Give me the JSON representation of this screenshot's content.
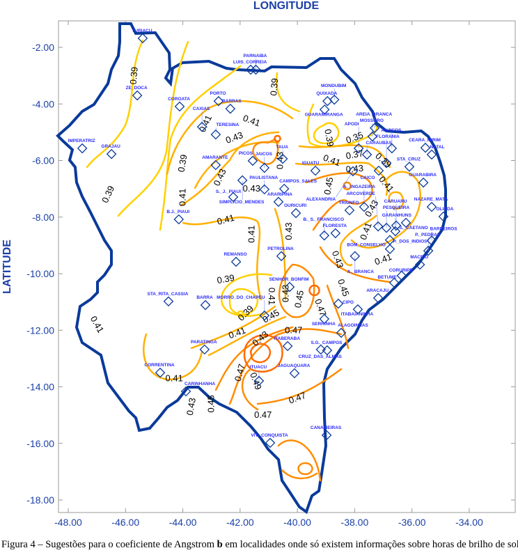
{
  "axes": {
    "xlabel": "LONGITUDE",
    "ylabel": "LATITUDE",
    "x_ticks": [
      "-48.00",
      "-46.00",
      "-44.00",
      "-42.00",
      "-40.00",
      "-38.00",
      "-36.00",
      "-34.00"
    ],
    "x_values": [
      -48,
      -46,
      -44,
      -42,
      -40,
      -38,
      -36,
      -34
    ],
    "y_ticks": [
      "-2.00",
      "-4.00",
      "-6.00",
      "-8.00",
      "-10.00",
      "-12.00",
      "-14.00",
      "-16.00",
      "-18.00"
    ],
    "y_values": [
      -2,
      -4,
      -6,
      -8,
      -10,
      -12,
      -14,
      -16,
      -18
    ],
    "xlim": [
      -48.35,
      -32.4
    ],
    "ylim": [
      -18.4,
      -1.1
    ]
  },
  "colors": {
    "axis": "#1a3fa6",
    "boundary": "#0a3a9a",
    "station": "#0a3a9a",
    "low": "#ffd000",
    "mid": "#ffb000",
    "high": "#ff8c00",
    "higher": "#ff6a00"
  },
  "stations": [
    {
      "name": "TURIACU",
      "lon": -45.4,
      "lat": -1.68
    },
    {
      "name": "ZE_DOCA",
      "lon": -45.59,
      "lat": -3.7
    },
    {
      "name": "IMPERATRIZ",
      "lon": -47.51,
      "lat": -5.57
    },
    {
      "name": "GRAJAU",
      "lon": -46.49,
      "lat": -5.77
    },
    {
      "name": "COROATA",
      "lon": -44.11,
      "lat": -4.09
    },
    {
      "name": "PORTO",
      "lon": -42.75,
      "lat": -3.9
    },
    {
      "name": "BARRAS",
      "lon": -42.34,
      "lat": -4.17
    },
    {
      "name": "CAXIAS",
      "lon": -43.33,
      "lat": -4.81
    },
    {
      "name": "TERESINA",
      "lon": -42.85,
      "lat": -5.08
    },
    {
      "name": "AMARANTE",
      "lon": -42.85,
      "lat": -6.16
    },
    {
      "name": "LUIS_CORREIA",
      "lon": -41.63,
      "lat": -2.79
    },
    {
      "name": "PARNAIBA",
      "lon": -41.45,
      "lat": -2.79
    },
    {
      "name": "PICOS",
      "lon": -41.56,
      "lat": -6.01
    },
    {
      "name": "JAICOS",
      "lon": -41.15,
      "lat": -6.26
    },
    {
      "name": "SIMPLICIO_MENDES",
      "lon": -41.92,
      "lat": -6.7
    },
    {
      "name": "S._J._PIAUI",
      "lon": -42.24,
      "lat": -7.29
    },
    {
      "name": "PAULISTANA",
      "lon": -41.15,
      "lat": -7.02
    },
    {
      "name": "CAMPOS_SALES",
      "lon": -40.46,
      "lat": -7.0
    },
    {
      "name": "ARARIPINA",
      "lon": -40.66,
      "lat": -7.46
    },
    {
      "name": "TAUA",
      "lon": -40.51,
      "lat": -5.94
    },
    {
      "name": "B.J._PIAUI",
      "lon": -44.14,
      "lat": -8.08
    },
    {
      "name": "OURICURI",
      "lon": -40.05,
      "lat": -7.86
    },
    {
      "name": "IGUATU",
      "lon": -39.37,
      "lat": -6.36
    },
    {
      "name": "ALEXANDRIA",
      "lon": -38.06,
      "lat": -6.38
    },
    {
      "name": "QUIXADA",
      "lon": -38.95,
      "lat": -3.9
    },
    {
      "name": "GUARAMIRANGA",
      "lon": -39.05,
      "lat": -4.2
    },
    {
      "name": "MONDUBIM",
      "lon": -38.71,
      "lat": -3.85
    },
    {
      "name": "AREIA_BRANCA",
      "lon": -37.3,
      "lat": -4.85
    },
    {
      "name": "MOSSORO",
      "lon": -37.38,
      "lat": -5.15
    },
    {
      "name": "APODI",
      "lon": -37.86,
      "lat": -5.57
    },
    {
      "name": "CARAUBAS",
      "lon": -37.57,
      "lat": -5.79
    },
    {
      "name": "ANJICOS",
      "lon": -36.7,
      "lat": -5.57
    },
    {
      "name": "CEARA_MIRIM",
      "lon": -35.53,
      "lat": -5.55
    },
    {
      "name": "NATAL",
      "lon": -35.31,
      "lat": -5.79
    },
    {
      "name": "FLORANIA",
      "lon": -36.89,
      "lat": -6.09
    },
    {
      "name": "CAICO",
      "lon": -37.16,
      "lat": -6.36
    },
    {
      "name": "STA_CRUZ",
      "lon": -36.09,
      "lat": -6.22
    },
    {
      "name": "GUARABIRA",
      "lon": -35.6,
      "lat": -6.78
    },
    {
      "name": "NAZARE_MATA",
      "lon": -35.31,
      "lat": -7.64
    },
    {
      "name": "OLINDA",
      "lon": -34.9,
      "lat": -7.98
    },
    {
      "name": "TRIUNFO",
      "lon": -38.18,
      "lat": -7.76
    },
    {
      "name": "A._INGAZEIRA",
      "lon": -37.67,
      "lat": -7.64
    },
    {
      "name": "ARCOVERDE",
      "lon": -37.18,
      "lat": -8.33
    },
    {
      "name": "PESQUEIRA",
      "lon": -36.89,
      "lat": -8.38
    },
    {
      "name": "CARUARU",
      "lon": -36.55,
      "lat": -8.3
    },
    {
      "name": "S._CAETANO",
      "lon": -36.21,
      "lat": -8.2
    },
    {
      "name": "GARANHUNS",
      "lon": -36.58,
      "lat": -8.5
    },
    {
      "name": "BOM_CONSELHO",
      "lon": -36.77,
      "lat": -8.81
    },
    {
      "name": "P._DOS_INDIOS",
      "lon": -36.77,
      "lat": -9.13
    },
    {
      "name": "BARREIROS",
      "lon": -35.31,
      "lat": -8.83
    },
    {
      "name": "P._PEDRAS",
      "lon": -35.43,
      "lat": -9.19
    },
    {
      "name": "MACEIO",
      "lon": -35.72,
      "lat": -9.68
    },
    {
      "name": "CORURIPE",
      "lon": -36.36,
      "lat": -10.07
    },
    {
      "name": "BETUME",
      "lon": -36.62,
      "lat": -10.32
    },
    {
      "name": "ARACAJU",
      "lon": -37.18,
      "lat": -10.86
    },
    {
      "name": "A._BRANCA",
      "lon": -37.99,
      "lat": -9.38
    },
    {
      "name": "FLORESTA",
      "lon": -38.67,
      "lat": -8.57
    },
    {
      "name": "B._S._FRANCISCO",
      "lon": -39.06,
      "lat": -8.65
    },
    {
      "name": "PETROLINA",
      "lon": -40.56,
      "lat": -9.38
    },
    {
      "name": "REMANSO",
      "lon": -42.14,
      "lat": -9.58
    },
    {
      "name": "SENHOR_BONFIM",
      "lon": -40.27,
      "lat": -10.47
    },
    {
      "name": "SERRINHA",
      "lon": -39.06,
      "lat": -11.6
    },
    {
      "name": "CIPO",
      "lon": -38.57,
      "lat": -11.06
    },
    {
      "name": "ITABAIANINHA",
      "lon": -37.89,
      "lat": -11.26
    },
    {
      "name": "ALAGOINHAS",
      "lon": -38.47,
      "lat": -12.09
    },
    {
      "name": "S.G._CAMPOS",
      "lon": -38.96,
      "lat": -12.71
    },
    {
      "name": "CRUZ_DAS_ALMAS",
      "lon": -39.18,
      "lat": -12.68
    },
    {
      "name": "MORRO_DO_CHAPEU",
      "lon": -41.15,
      "lat": -11.48
    },
    {
      "name": "BARRA",
      "lon": -43.21,
      "lat": -11.11
    },
    {
      "name": "STA_RITA_CASSIA",
      "lon": -44.5,
      "lat": -10.98
    },
    {
      "name": "ITABERABA",
      "lon": -40.34,
      "lat": -12.56
    },
    {
      "name": "PARATINGA",
      "lon": -43.24,
      "lat": -12.68
    },
    {
      "name": "ITUACU",
      "lon": -41.34,
      "lat": -13.79
    },
    {
      "name": "JAGUAQUARA",
      "lon": -40.1,
      "lat": -13.52
    },
    {
      "name": "CORRENTINA",
      "lon": -44.79,
      "lat": -13.5
    },
    {
      "name": "CARINHANHA",
      "lon": -43.89,
      "lat": -14.16
    },
    {
      "name": "VIT._CONQUISTA",
      "lon": -40.95,
      "lat": -15.98
    },
    {
      "name": "CANAVIEIRAS",
      "lon": -38.98,
      "lat": -15.71
    }
  ],
  "contour_levels": [
    "0.35",
    "0.37",
    "0.39",
    "0.41",
    "0.43",
    "0.45",
    "0.47",
    "0.49"
  ],
  "contour_labels": [
    {
      "text": "0.39",
      "lon": -45.7,
      "lat": -3.0,
      "rot": -85
    },
    {
      "text": "0.39",
      "lon": -44.0,
      "lat": -6.1,
      "rot": -80
    },
    {
      "text": "0.39",
      "lon": -46.6,
      "lat": -7.2,
      "rot": -65
    },
    {
      "text": "0.39",
      "lon": -40.8,
      "lat": -3.4,
      "rot": -85
    },
    {
      "text": "0.41",
      "lon": -41.6,
      "lat": -4.6,
      "rot": 20
    },
    {
      "text": "0.41",
      "lon": -43.2,
      "lat": -4.7,
      "rot": -65
    },
    {
      "text": "0.41",
      "lon": -44.0,
      "lat": -7.3,
      "rot": -90
    },
    {
      "text": "0.41",
      "lon": -42.5,
      "lat": -8.1,
      "rot": -15
    },
    {
      "text": "0.41",
      "lon": -41.6,
      "lat": -8.6,
      "rot": -90
    },
    {
      "text": "0.43",
      "lon": -42.2,
      "lat": -5.2,
      "rot": -20
    },
    {
      "text": "0.43",
      "lon": -42.7,
      "lat": -6.6,
      "rot": -65
    },
    {
      "text": "0.43",
      "lon": -41.6,
      "lat": -7.0,
      "rot": 0
    },
    {
      "text": "0.43",
      "lon": -40.6,
      "lat": -6.0,
      "rot": -90
    },
    {
      "text": "0.43",
      "lon": -40.3,
      "lat": -8.5,
      "rot": -90
    },
    {
      "text": "0.39",
      "lon": -38.9,
      "lat": -5.2,
      "rot": 80
    },
    {
      "text": "0.35",
      "lon": -38.0,
      "lat": -5.2,
      "rot": -20
    },
    {
      "text": "0.37",
      "lon": -38.0,
      "lat": -5.8,
      "rot": -10
    },
    {
      "text": "0.41",
      "lon": -38.8,
      "lat": -6.0,
      "rot": 20
    },
    {
      "text": "0.43",
      "lon": -38.0,
      "lat": -6.3,
      "rot": -5
    },
    {
      "text": "0.45",
      "lon": -38.9,
      "lat": -6.9,
      "rot": -80
    },
    {
      "text": "0.39",
      "lon": -37.0,
      "lat": -6.0,
      "rot": 40
    },
    {
      "text": "0.41",
      "lon": -36.9,
      "lat": -6.5,
      "rot": 50
    },
    {
      "text": "0.43",
      "lon": -37.4,
      "lat": -7.7,
      "rot": -60
    },
    {
      "text": "0.41",
      "lon": -37.6,
      "lat": -8.5,
      "rot": -70
    },
    {
      "text": "0.41",
      "lon": -37.0,
      "lat": -9.5,
      "rot": -20
    },
    {
      "text": "0.43",
      "lon": -38.6,
      "lat": -9.5,
      "rot": 70
    },
    {
      "text": "0.45",
      "lon": -38.4,
      "lat": -10.5,
      "rot": 70
    },
    {
      "text": "0.47",
      "lon": -39.2,
      "lat": -11.2,
      "rot": 70
    },
    {
      "text": "0.43",
      "lon": -40.4,
      "lat": -10.7,
      "rot": -90
    },
    {
      "text": "0.45",
      "lon": -40.1,
      "lat": -10.9,
      "rot": -80
    },
    {
      "text": "0.41",
      "lon": -40.9,
      "lat": -10.8,
      "rot": 90
    },
    {
      "text": "0.39",
      "lon": -42.5,
      "lat": -10.2,
      "rot": -10
    },
    {
      "text": "0.39",
      "lon": -41.8,
      "lat": -11.4,
      "rot": -45
    },
    {
      "text": "0.41",
      "lon": -42.1,
      "lat": -12.1,
      "rot": -20
    },
    {
      "text": "0.43",
      "lon": -41.8,
      "lat": -12.3,
      "rot": -40
    },
    {
      "text": "0.45",
      "lon": -41.6,
      "lat": -12.2,
      "rot": -30
    },
    {
      "text": "0.47",
      "lon": -40.3,
      "lat": -12.0,
      "rot": 0
    },
    {
      "text": "0.47",
      "lon": -42.0,
      "lat": -13.5,
      "rot": -75
    },
    {
      "text": "0.49",
      "lon": -41.8,
      "lat": -13.8,
      "rot": 70
    },
    {
      "text": "0.47",
      "lon": -41.2,
      "lat": -15.0,
      "rot": 0
    },
    {
      "text": "0.47",
      "lon": -40.0,
      "lat": -14.4,
      "rot": -20
    },
    {
      "text": "0.45",
      "lon": -43.0,
      "lat": -14.6,
      "rot": -90
    },
    {
      "text": "0.43",
      "lon": -43.7,
      "lat": -14.7,
      "rot": -80
    },
    {
      "text": "0.41",
      "lon": -44.3,
      "lat": -13.7,
      "rot": 0
    },
    {
      "text": "0.41",
      "lon": -47.0,
      "lat": -11.8,
      "rot": 60
    }
  ],
  "caption": {
    "prefix": "Figura 4 – Sugestões para o coeficiente de Angstrom ",
    "bold": "b",
    "suffix": " em localidades onde só existem informações sobre horas de brilho de sol"
  }
}
